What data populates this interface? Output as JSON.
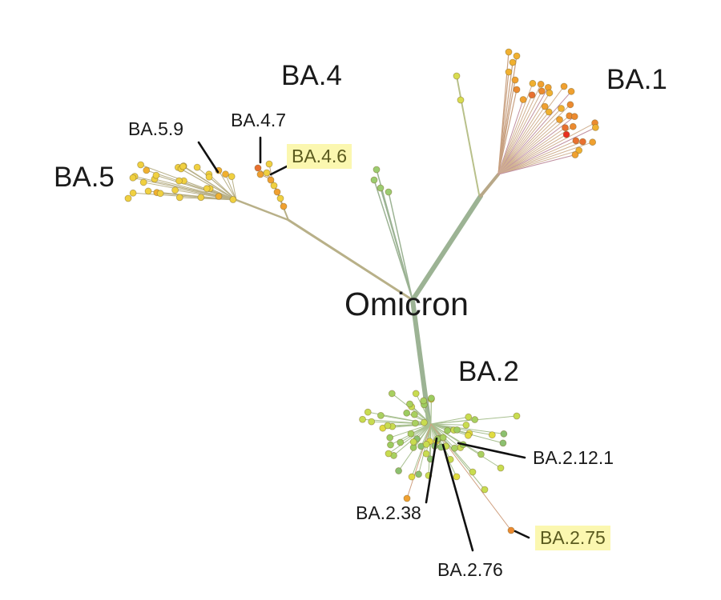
{
  "title": "Omicron",
  "clades": [
    {
      "name": "BA.1",
      "color": "#f0a030"
    },
    {
      "name": "BA.2",
      "color": "#9ccc60"
    },
    {
      "name": "BA.4",
      "color": "#f0b030"
    },
    {
      "name": "BA.5",
      "color": "#f0cc40"
    }
  ],
  "sublineages": [
    {
      "name": "BA.5.9",
      "highlighted": false
    },
    {
      "name": "BA.4.7",
      "highlighted": false
    },
    {
      "name": "BA.4.6",
      "highlighted": true
    },
    {
      "name": "BA.2.12.1",
      "highlighted": false
    },
    {
      "name": "BA.2.38",
      "highlighted": false
    },
    {
      "name": "BA.2.75",
      "highlighted": true
    },
    {
      "name": "BA.2.76",
      "highlighted": false
    }
  ],
  "colors": {
    "trunk": "#9cb394",
    "branch_ba45": "#b8b088",
    "highlight": "#fbf7b0",
    "leader": "#111111"
  }
}
